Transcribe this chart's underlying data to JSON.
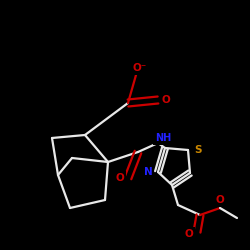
{
  "bg": "#000000",
  "bc": "#e8e8e8",
  "bw": 1.6,
  "atom_colors": {
    "O": "#cc0000",
    "N": "#2222ff",
    "S": "#cc8800",
    "C": "#e8e8e8"
  }
}
